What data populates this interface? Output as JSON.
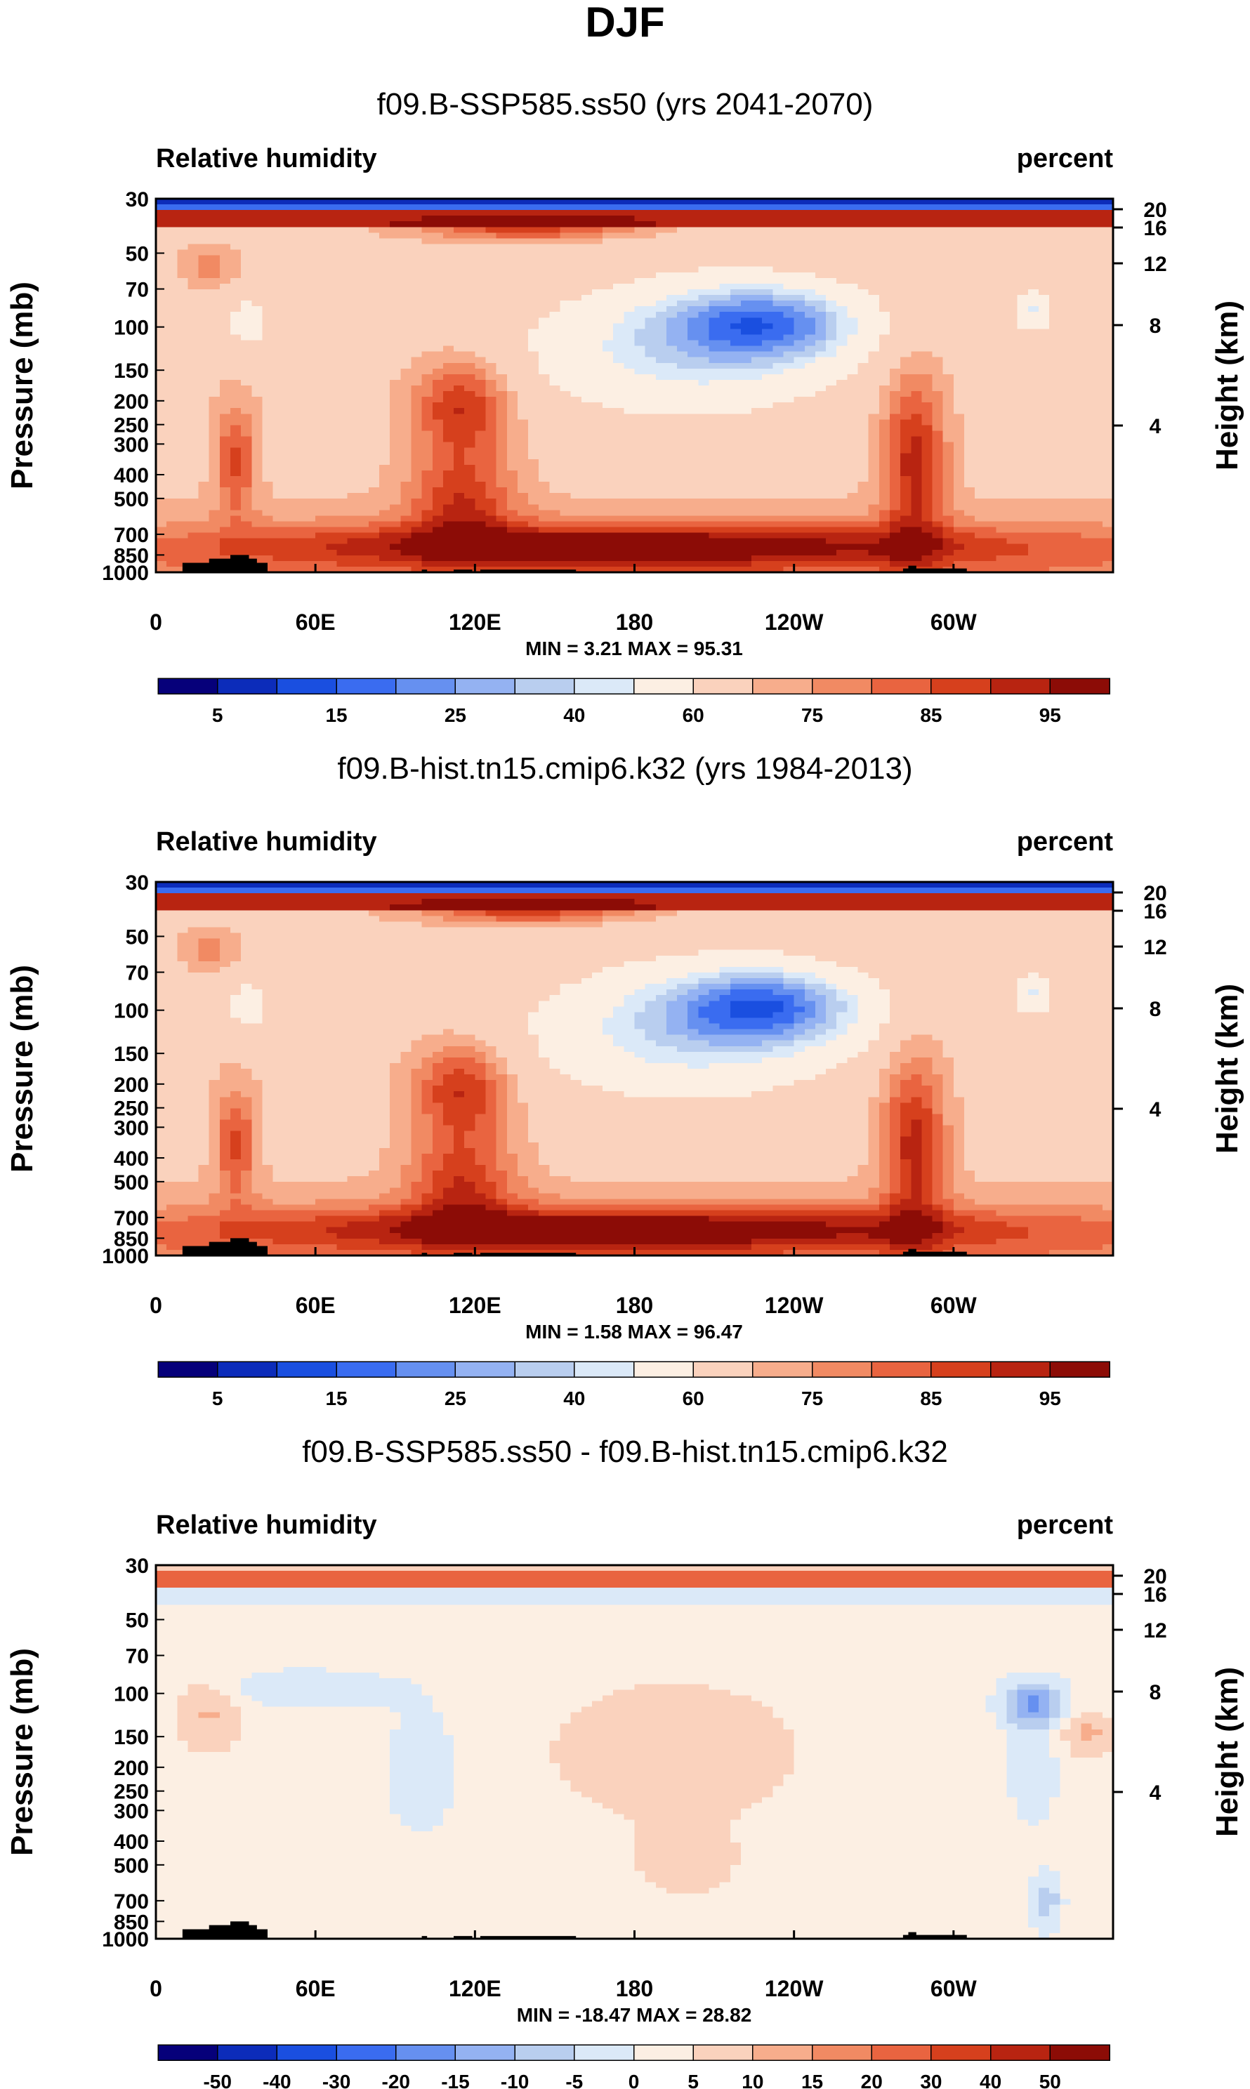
{
  "page": {
    "title": "DJF"
  },
  "chart_data": [
    {
      "type": "heatmap",
      "title": "f09.B-SSP585.ss50 (yrs 2041-2070)",
      "left_label": "Relative humidity",
      "right_label": "percent",
      "ylabel": "Pressure (mb)",
      "y2label": "Height (km)",
      "xlabel": "",
      "x_ticks": [
        "0",
        "60E",
        "120E",
        "180",
        "120W",
        "60W"
      ],
      "y_ticks": [
        "30",
        "50",
        "70",
        "100",
        "150",
        "200",
        "250",
        "300",
        "400",
        "500",
        "700",
        "850",
        "1000"
      ],
      "height_ticks": [
        "20",
        "16",
        "12",
        "8",
        "4"
      ],
      "stats": "MIN =   3.21  MAX =  95.31",
      "colorbar_labels": [
        "5",
        "15",
        "25",
        "40",
        "60",
        "75",
        "85",
        "95"
      ],
      "colorbar_colors": [
        "#06007a",
        "#0c2cba",
        "#1a4fe0",
        "#3a6cf0",
        "#6690f0",
        "#94b2f2",
        "#b9ceef",
        "#dbe9f8",
        "#fcefe3",
        "#fad2bd",
        "#f7ad8c",
        "#f18a63",
        "#e96440",
        "#d6401d",
        "#b82411",
        "#8c0c06"
      ],
      "contour_levels": [
        5,
        10,
        15,
        20,
        25,
        30,
        35,
        40,
        50,
        60,
        65,
        70,
        75,
        80,
        85,
        90,
        95
      ]
    },
    {
      "type": "heatmap",
      "title": "f09.B-hist.tn15.cmip6.k32 (yrs 1984-2013)",
      "left_label": "Relative humidity",
      "right_label": "percent",
      "ylabel": "Pressure (mb)",
      "y2label": "Height (km)",
      "xlabel": "",
      "x_ticks": [
        "0",
        "60E",
        "120E",
        "180",
        "120W",
        "60W"
      ],
      "y_ticks": [
        "30",
        "50",
        "70",
        "100",
        "150",
        "200",
        "250",
        "300",
        "400",
        "500",
        "700",
        "850",
        "1000"
      ],
      "height_ticks": [
        "20",
        "16",
        "12",
        "8",
        "4"
      ],
      "stats": "MIN =   1.58  MAX =  96.47",
      "colorbar_labels": [
        "5",
        "15",
        "25",
        "40",
        "60",
        "75",
        "85",
        "95"
      ],
      "colorbar_colors": [
        "#06007a",
        "#0c2cba",
        "#1a4fe0",
        "#3a6cf0",
        "#6690f0",
        "#94b2f2",
        "#b9ceef",
        "#dbe9f8",
        "#fcefe3",
        "#fad2bd",
        "#f7ad8c",
        "#f18a63",
        "#e96440",
        "#d6401d",
        "#b82411",
        "#8c0c06"
      ],
      "contour_levels": [
        5,
        10,
        15,
        20,
        25,
        30,
        35,
        40,
        50,
        60,
        65,
        70,
        75,
        80,
        85,
        90,
        95
      ]
    },
    {
      "type": "heatmap",
      "title": "f09.B-SSP585.ss50 - f09.B-hist.tn15.cmip6.k32",
      "left_label": "Relative humidity",
      "right_label": "percent",
      "ylabel": "Pressure (mb)",
      "y2label": "Height (km)",
      "xlabel": "",
      "x_ticks": [
        "0",
        "60E",
        "120E",
        "180",
        "120W",
        "60W"
      ],
      "y_ticks": [
        "30",
        "50",
        "70",
        "100",
        "150",
        "200",
        "250",
        "300",
        "400",
        "500",
        "700",
        "850",
        "1000"
      ],
      "height_ticks": [
        "20",
        "16",
        "12",
        "8",
        "4"
      ],
      "stats": "MIN = -18.47  MAX =  28.82",
      "colorbar_labels": [
        "-50",
        "-40",
        "-30",
        "-20",
        "-15",
        "-10",
        "-5",
        "0",
        "5",
        "10",
        "15",
        "20",
        "30",
        "40",
        "50"
      ],
      "colorbar_colors": [
        "#06007a",
        "#0c2cba",
        "#1a4fe0",
        "#3a6cf0",
        "#6690f0",
        "#94b2f2",
        "#b9ceef",
        "#dbe9f8",
        "#fcefe3",
        "#fad2bd",
        "#f7ad8c",
        "#f18a63",
        "#e96440",
        "#d6401d",
        "#b82411",
        "#8c0c06"
      ],
      "contour_levels": [
        -50,
        -40,
        -30,
        -20,
        -15,
        -10,
        -5,
        0,
        5,
        10,
        15,
        20,
        30,
        40,
        50
      ]
    }
  ]
}
